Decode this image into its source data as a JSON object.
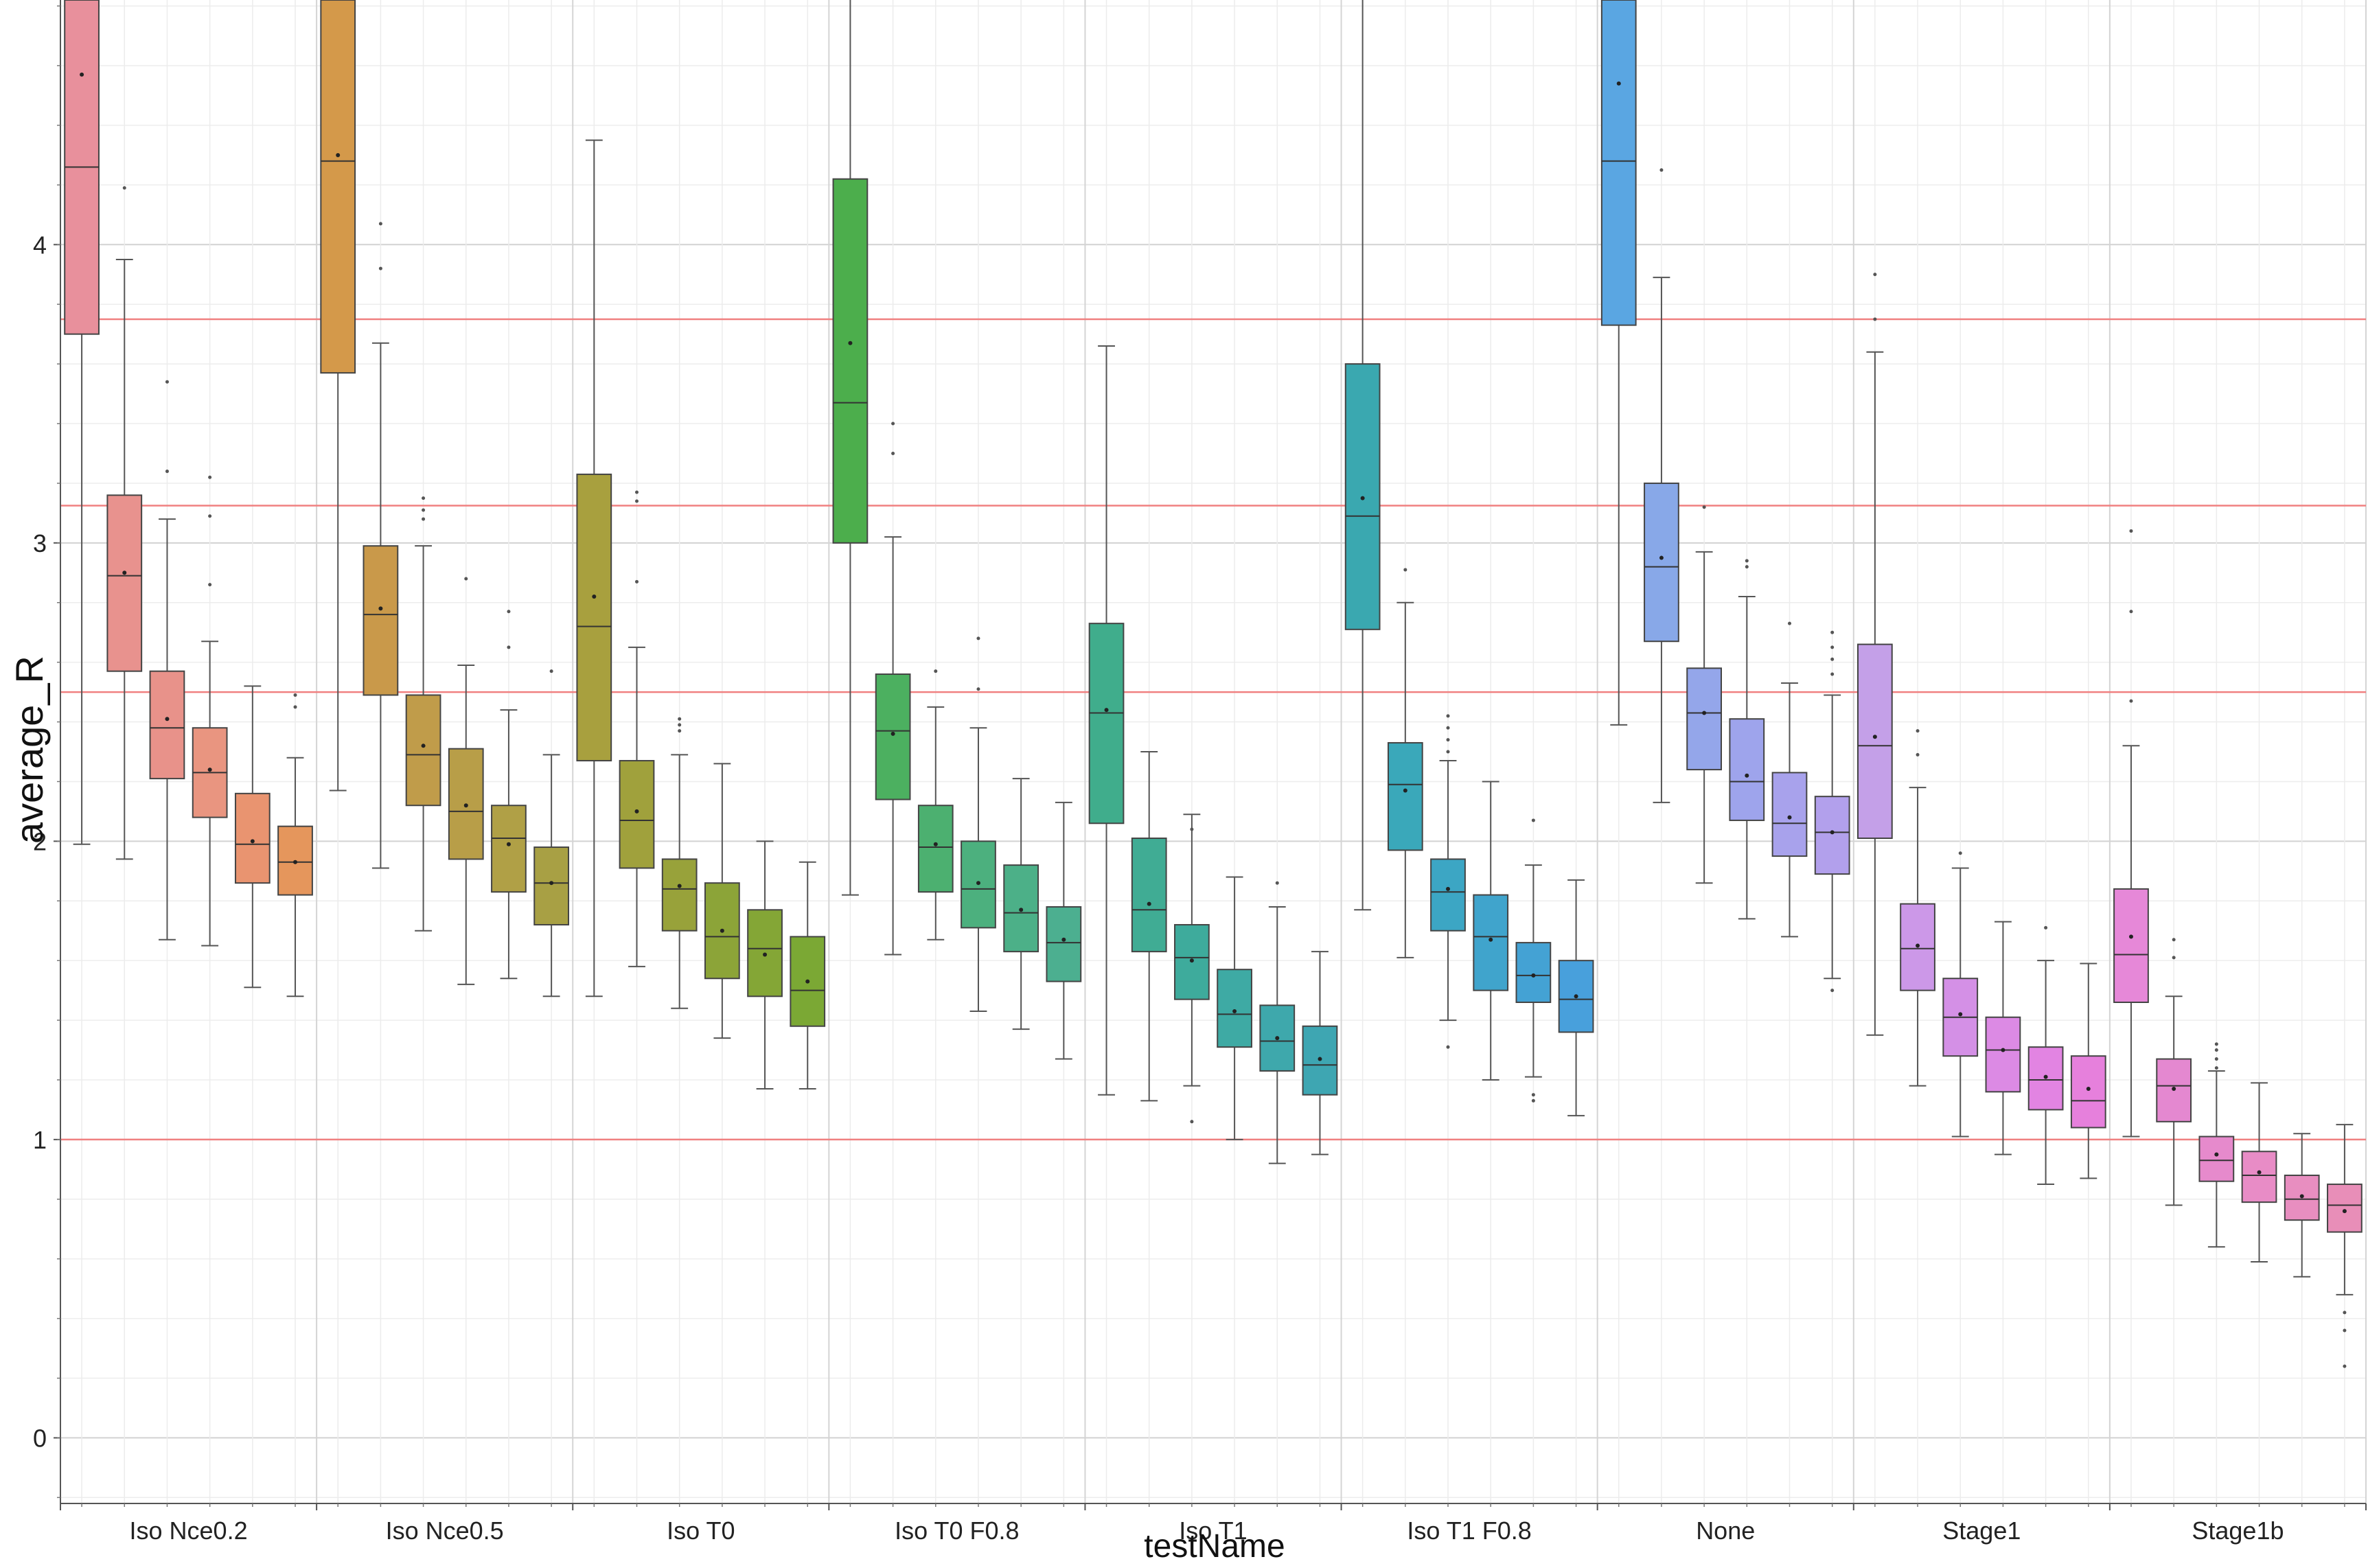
{
  "chart_data": {
    "type": "box",
    "xlabel": "testName",
    "ylabel": "average_R",
    "ylim": [
      -0.22,
      4.82
    ],
    "y_ticks": [
      0,
      1,
      2,
      3,
      4
    ],
    "y_tick_labels": [
      "0",
      "1",
      "2",
      "3",
      "4"
    ],
    "minor_y_step": 0.2,
    "grid": true,
    "reference_lines": [
      1.0,
      2.5,
      3.125,
      3.75
    ],
    "reference_line_color": "#f08080",
    "groups": [
      {
        "name": "Iso Nce0.2",
        "boxes": [
          {
            "color": "#e8909c",
            "whislo": 1.99,
            "q1": 3.7,
            "med": 4.26,
            "q3": 4.9,
            "whishi": 4.9,
            "mean": 4.57,
            "fliers": []
          },
          {
            "color": "#e8928e",
            "whislo": 1.94,
            "q1": 2.57,
            "med": 2.89,
            "q3": 3.16,
            "whishi": 3.95,
            "mean": 2.9,
            "fliers": [
              4.19
            ]
          },
          {
            "color": "#e8928a",
            "whislo": 1.67,
            "q1": 2.21,
            "med": 2.38,
            "q3": 2.57,
            "whishi": 3.08,
            "mean": 2.41,
            "fliers": [
              3.24,
              3.54
            ]
          },
          {
            "color": "#e99580",
            "whislo": 1.65,
            "q1": 2.08,
            "med": 2.23,
            "q3": 2.38,
            "whishi": 2.67,
            "mean": 2.24,
            "fliers": [
              2.86,
              3.09,
              3.22
            ]
          },
          {
            "color": "#e99470",
            "whislo": 1.51,
            "q1": 1.86,
            "med": 1.99,
            "q3": 2.16,
            "whishi": 2.52,
            "mean": 2.0,
            "fliers": []
          },
          {
            "color": "#e5965c",
            "whislo": 1.48,
            "q1": 1.82,
            "med": 1.93,
            "q3": 2.05,
            "whishi": 2.28,
            "mean": 1.93,
            "fliers": [
              2.45,
              2.49
            ]
          }
        ]
      },
      {
        "name": "Iso Nce0.5",
        "boxes": [
          {
            "color": "#d4994a",
            "whislo": 2.17,
            "q1": 3.57,
            "med": 4.28,
            "q3": 4.9,
            "whishi": 4.9,
            "mean": 4.3,
            "fliers": []
          },
          {
            "color": "#c9994a",
            "whislo": 1.91,
            "q1": 2.49,
            "med": 2.76,
            "q3": 2.99,
            "whishi": 3.67,
            "mean": 2.78,
            "fliers": [
              3.92,
              4.07
            ]
          },
          {
            "color": "#c09c4a",
            "whislo": 1.7,
            "q1": 2.12,
            "med": 2.29,
            "q3": 2.49,
            "whishi": 2.99,
            "mean": 2.32,
            "fliers": [
              3.08,
              3.11,
              3.15
            ]
          },
          {
            "color": "#b89e48",
            "whislo": 1.52,
            "q1": 1.94,
            "med": 2.1,
            "q3": 2.31,
            "whishi": 2.59,
            "mean": 2.12,
            "fliers": [
              2.88
            ]
          },
          {
            "color": "#b0a046",
            "whislo": 1.54,
            "q1": 1.83,
            "med": 2.01,
            "q3": 2.12,
            "whishi": 2.44,
            "mean": 1.99,
            "fliers": [
              2.65,
              2.77
            ]
          },
          {
            "color": "#a8a044",
            "whislo": 1.48,
            "q1": 1.72,
            "med": 1.86,
            "q3": 1.98,
            "whishi": 2.29,
            "mean": 1.86,
            "fliers": [
              2.57
            ]
          }
        ]
      },
      {
        "name": "Iso T0",
        "boxes": [
          {
            "color": "#a8a03e",
            "whislo": 1.48,
            "q1": 2.27,
            "med": 2.72,
            "q3": 3.23,
            "whishi": 4.35,
            "mean": 2.82,
            "fliers": []
          },
          {
            "color": "#a0a13c",
            "whislo": 1.58,
            "q1": 1.91,
            "med": 2.07,
            "q3": 2.27,
            "whishi": 2.65,
            "mean": 2.1,
            "fliers": [
              2.87,
              3.14,
              3.17
            ]
          },
          {
            "color": "#98a23a",
            "whislo": 1.44,
            "q1": 1.7,
            "med": 1.84,
            "q3": 1.94,
            "whishi": 2.29,
            "mean": 1.85,
            "fliers": [
              2.37,
              2.39,
              2.41
            ]
          },
          {
            "color": "#8ca438",
            "whislo": 1.34,
            "q1": 1.54,
            "med": 1.68,
            "q3": 1.86,
            "whishi": 2.26,
            "mean": 1.7,
            "fliers": []
          },
          {
            "color": "#84a636",
            "whislo": 1.17,
            "q1": 1.48,
            "med": 1.64,
            "q3": 1.77,
            "whishi": 2.0,
            "mean": 1.62,
            "fliers": []
          },
          {
            "color": "#7ba834",
            "whislo": 1.17,
            "q1": 1.38,
            "med": 1.5,
            "q3": 1.68,
            "whishi": 1.93,
            "mean": 1.53,
            "fliers": []
          }
        ]
      },
      {
        "name": "Iso T0 F0.8",
        "boxes": [
          {
            "color": "#4cae4c",
            "whislo": 1.82,
            "q1": 3.0,
            "med": 3.47,
            "q3": 4.22,
            "whishi": 4.9,
            "mean": 3.67,
            "fliers": []
          },
          {
            "color": "#4cb060",
            "whislo": 1.62,
            "q1": 2.14,
            "med": 2.37,
            "q3": 2.56,
            "whishi": 3.02,
            "mean": 2.36,
            "fliers": [
              3.3,
              3.4
            ]
          },
          {
            "color": "#4cb070",
            "whislo": 1.67,
            "q1": 1.83,
            "med": 1.98,
            "q3": 2.12,
            "whishi": 2.45,
            "mean": 1.99,
            "fliers": [
              2.57
            ]
          },
          {
            "color": "#4cb07e",
            "whislo": 1.43,
            "q1": 1.71,
            "med": 1.84,
            "q3": 2.0,
            "whishi": 2.38,
            "mean": 1.86,
            "fliers": [
              2.51,
              2.68
            ]
          },
          {
            "color": "#4cb088",
            "whislo": 1.37,
            "q1": 1.63,
            "med": 1.76,
            "q3": 1.92,
            "whishi": 2.21,
            "mean": 1.77,
            "fliers": []
          },
          {
            "color": "#4caf90",
            "whislo": 1.27,
            "q1": 1.53,
            "med": 1.66,
            "q3": 1.78,
            "whishi": 2.13,
            "mean": 1.67,
            "fliers": []
          }
        ]
      },
      {
        "name": "Iso T1",
        "boxes": [
          {
            "color": "#40ad8c",
            "whislo": 1.15,
            "q1": 2.06,
            "med": 2.43,
            "q3": 2.73,
            "whishi": 3.66,
            "mean": 2.44,
            "fliers": []
          },
          {
            "color": "#40ac94",
            "whislo": 1.13,
            "q1": 1.63,
            "med": 1.77,
            "q3": 2.01,
            "whishi": 2.3,
            "mean": 1.79,
            "fliers": []
          },
          {
            "color": "#3eab9c",
            "whislo": 1.18,
            "q1": 1.47,
            "med": 1.61,
            "q3": 1.72,
            "whishi": 2.09,
            "mean": 1.6,
            "fliers": [
              1.06,
              2.04
            ]
          },
          {
            "color": "#3eaaa4",
            "whislo": 1.0,
            "q1": 1.31,
            "med": 1.42,
            "q3": 1.57,
            "whishi": 1.88,
            "mean": 1.43,
            "fliers": []
          },
          {
            "color": "#3ea8ac",
            "whislo": 0.92,
            "q1": 1.23,
            "med": 1.33,
            "q3": 1.45,
            "whishi": 1.78,
            "mean": 1.34,
            "fliers": [
              1.86
            ]
          },
          {
            "color": "#3ea6b2",
            "whislo": 0.95,
            "q1": 1.15,
            "med": 1.25,
            "q3": 1.38,
            "whishi": 1.63,
            "mean": 1.27,
            "fliers": []
          }
        ]
      },
      {
        "name": "Iso T1 F0.8",
        "boxes": [
          {
            "color": "#3aa8b0",
            "whislo": 1.77,
            "q1": 2.71,
            "med": 3.09,
            "q3": 3.6,
            "whishi": 4.9,
            "mean": 3.15,
            "fliers": []
          },
          {
            "color": "#3aa8ba",
            "whislo": 1.61,
            "q1": 1.97,
            "med": 2.19,
            "q3": 2.33,
            "whishi": 2.8,
            "mean": 2.17,
            "fliers": [
              2.91
            ]
          },
          {
            "color": "#3ca6c4",
            "whislo": 1.4,
            "q1": 1.7,
            "med": 1.83,
            "q3": 1.94,
            "whishi": 2.27,
            "mean": 1.84,
            "fliers": [
              1.31,
              2.3,
              2.34,
              2.38,
              2.42
            ]
          },
          {
            "color": "#40a4cc",
            "whislo": 1.2,
            "q1": 1.5,
            "med": 1.68,
            "q3": 1.82,
            "whishi": 2.2,
            "mean": 1.67,
            "fliers": []
          },
          {
            "color": "#44a2d4",
            "whislo": 1.21,
            "q1": 1.46,
            "med": 1.55,
            "q3": 1.66,
            "whishi": 1.92,
            "mean": 1.55,
            "fliers": [
              1.13,
              1.15,
              2.07
            ]
          },
          {
            "color": "#48a0dc",
            "whislo": 1.08,
            "q1": 1.36,
            "med": 1.47,
            "q3": 1.6,
            "whishi": 1.87,
            "mean": 1.48,
            "fliers": []
          }
        ]
      },
      {
        "name": "None",
        "boxes": [
          {
            "color": "#5aa6e2",
            "whislo": 2.39,
            "q1": 3.73,
            "med": 4.28,
            "q3": 4.9,
            "whishi": 4.9,
            "mean": 4.54,
            "fliers": []
          },
          {
            "color": "#88a8e8",
            "whislo": 2.13,
            "q1": 2.67,
            "med": 2.92,
            "q3": 3.2,
            "whishi": 3.89,
            "mean": 2.95,
            "fliers": [
              4.25
            ]
          },
          {
            "color": "#94a6ea",
            "whislo": 1.86,
            "q1": 2.24,
            "med": 2.43,
            "q3": 2.58,
            "whishi": 2.97,
            "mean": 2.43,
            "fliers": [
              3.12
            ]
          },
          {
            "color": "#9ea4ec",
            "whislo": 1.74,
            "q1": 2.07,
            "med": 2.2,
            "q3": 2.41,
            "whishi": 2.82,
            "mean": 2.22,
            "fliers": [
              2.92,
              2.94
            ]
          },
          {
            "color": "#a8a2ec",
            "whislo": 1.68,
            "q1": 1.95,
            "med": 2.06,
            "q3": 2.23,
            "whishi": 2.53,
            "mean": 2.08,
            "fliers": [
              2.73
            ]
          },
          {
            "color": "#b2a0ec",
            "whislo": 1.54,
            "q1": 1.89,
            "med": 2.03,
            "q3": 2.15,
            "whishi": 2.49,
            "mean": 2.03,
            "fliers": [
              1.5,
              2.56,
              2.61,
              2.65,
              2.7
            ]
          }
        ]
      },
      {
        "name": "Stage1",
        "boxes": [
          {
            "color": "#c4a0e8",
            "whislo": 1.35,
            "q1": 2.01,
            "med": 2.32,
            "q3": 2.66,
            "whishi": 3.64,
            "mean": 2.35,
            "fliers": [
              3.75,
              3.9
            ]
          },
          {
            "color": "#cc98e8",
            "whislo": 1.18,
            "q1": 1.5,
            "med": 1.64,
            "q3": 1.79,
            "whishi": 2.18,
            "mean": 1.65,
            "fliers": [
              2.29,
              2.37
            ]
          },
          {
            "color": "#d490e6",
            "whislo": 1.01,
            "q1": 1.28,
            "med": 1.41,
            "q3": 1.54,
            "whishi": 1.91,
            "mean": 1.42,
            "fliers": [
              1.96
            ]
          },
          {
            "color": "#dc8ae4",
            "whislo": 0.95,
            "q1": 1.16,
            "med": 1.3,
            "q3": 1.41,
            "whishi": 1.73,
            "mean": 1.3,
            "fliers": []
          },
          {
            "color": "#e284e2",
            "whislo": 0.85,
            "q1": 1.1,
            "med": 1.2,
            "q3": 1.31,
            "whishi": 1.6,
            "mean": 1.21,
            "fliers": [
              1.71
            ]
          },
          {
            "color": "#e680dc",
            "whislo": 0.87,
            "q1": 1.04,
            "med": 1.13,
            "q3": 1.28,
            "whishi": 1.59,
            "mean": 1.17,
            "fliers": []
          }
        ]
      },
      {
        "name": "Stage1b",
        "boxes": [
          {
            "color": "#e688d8",
            "whislo": 1.01,
            "q1": 1.46,
            "med": 1.62,
            "q3": 1.84,
            "whishi": 2.32,
            "mean": 1.68,
            "fliers": [
              2.47,
              2.77,
              3.04
            ]
          },
          {
            "color": "#e488d0",
            "whislo": 0.78,
            "q1": 1.06,
            "med": 1.18,
            "q3": 1.27,
            "whishi": 1.48,
            "mean": 1.17,
            "fliers": [
              1.61,
              1.67
            ]
          },
          {
            "color": "#e68acc",
            "whislo": 0.64,
            "q1": 0.86,
            "med": 0.93,
            "q3": 1.01,
            "whishi": 1.23,
            "mean": 0.95,
            "fliers": [
              1.24,
              1.27,
              1.3,
              1.32
            ]
          },
          {
            "color": "#e88cc6",
            "whislo": 0.59,
            "q1": 0.79,
            "med": 0.88,
            "q3": 0.96,
            "whishi": 1.19,
            "mean": 0.89,
            "fliers": []
          },
          {
            "color": "#e88ec0",
            "whislo": 0.54,
            "q1": 0.73,
            "med": 0.8,
            "q3": 0.88,
            "whishi": 1.02,
            "mean": 0.81,
            "fliers": []
          },
          {
            "color": "#e88eb8",
            "whislo": 0.48,
            "q1": 0.69,
            "med": 0.78,
            "q3": 0.85,
            "whishi": 1.05,
            "mean": 0.76,
            "fliers": [
              0.24,
              0.36,
              0.42
            ]
          }
        ]
      }
    ]
  }
}
